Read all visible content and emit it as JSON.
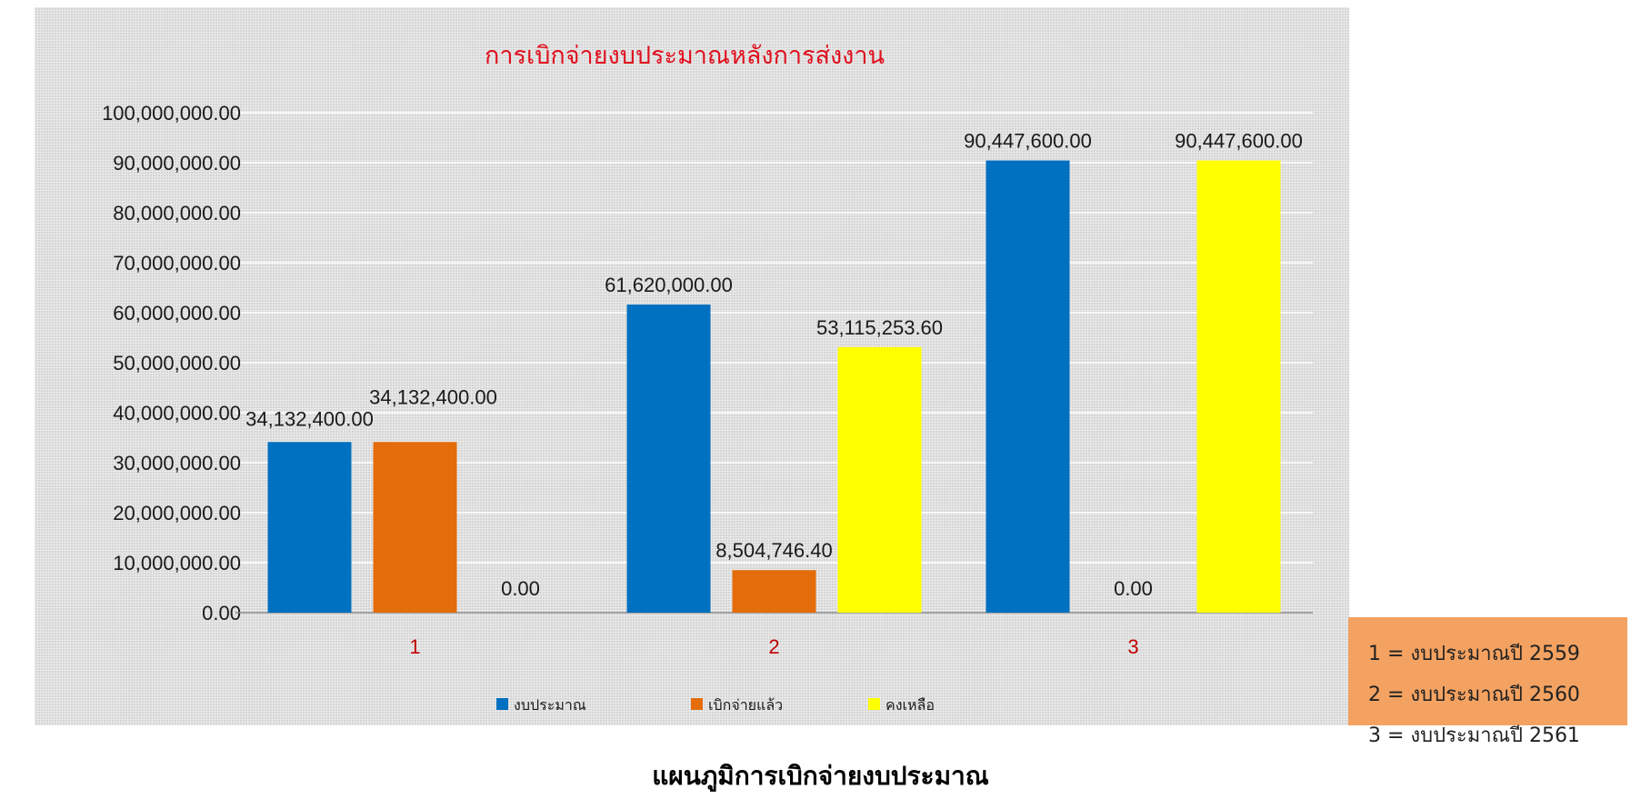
{
  "chart_data": {
    "type": "bar",
    "title": "การเบิกจ่ายงบประมาณหลังการส่งงาน",
    "title_color": "#e0101e",
    "categories": [
      "1",
      "2",
      "3"
    ],
    "category_label_color": "#c00000",
    "series": [
      {
        "name": "งบประมาณ",
        "color": "#0070c0",
        "values": [
          34132400.0,
          61620000.0,
          90447600.0
        ],
        "labels": [
          "34,132,400.00",
          "61,620,000.00",
          "90,447,600.00"
        ]
      },
      {
        "name": "เบิกจ่ายแล้ว",
        "color": "#e46c0a",
        "values": [
          34132400.0,
          8504746.4,
          0
        ],
        "labels": [
          "34,132,400.00",
          "8,504,746.40",
          "0.00"
        ]
      },
      {
        "name": "คงเหลือ",
        "color": "#ffff00",
        "values": [
          0,
          53115253.6,
          90447600.0
        ],
        "labels": [
          "0.00",
          "53,115,253.60",
          "90,447,600.00"
        ]
      }
    ],
    "ylim": [
      0,
      100000000
    ],
    "yticks": [
      0,
      10000000,
      20000000,
      30000000,
      40000000,
      50000000,
      60000000,
      70000000,
      80000000,
      90000000,
      100000000
    ],
    "ytick_labels": [
      "0.00",
      "10,000,000.00",
      "20,000,000.00",
      "30,000,000.00",
      "40,000,000.00",
      "50,000,000.00",
      "60,000,000.00",
      "70,000,000.00",
      "80,000,000.00",
      "90,000,000.00",
      "100,000,000.00"
    ],
    "grid": true,
    "legend_position": "bottom",
    "xlabel": "",
    "ylabel": ""
  },
  "note_box": {
    "lines": [
      "1 = งบประมาณปี 2559",
      "2 = งบประมาณปี 2560",
      "3 = งบประมาณปี 2561"
    ],
    "background": "#f4a261"
  },
  "caption": "แผนภูมิการเบิกจ่ายงบประมาณ"
}
